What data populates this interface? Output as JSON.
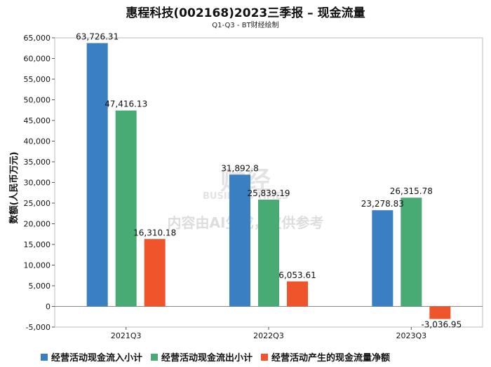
{
  "chart_data": {
    "type": "bar",
    "title": "惠程科技(002168)2023三季报 – 现金流量",
    "subtitle": "Q1-Q3 - BT财经绘制",
    "ylabel": "数额(人民币万元)",
    "categories": [
      "2021Q3",
      "2022Q3",
      "2023Q3"
    ],
    "ylim": [
      -5000,
      65000
    ],
    "yticks": [
      -5000,
      0,
      5000,
      10000,
      15000,
      20000,
      25000,
      30000,
      35000,
      40000,
      45000,
      50000,
      55000,
      60000,
      65000
    ],
    "ytick_labels": [
      "-5,000",
      "0",
      "5,000",
      "10,000",
      "15,000",
      "20,000",
      "25,000",
      "30,000",
      "35,000",
      "40,000",
      "45,000",
      "50,000",
      "55,000",
      "60,000",
      "65,000"
    ],
    "grid": false,
    "legend_position": "bottom",
    "series": [
      {
        "name": "经营活动现金流入小计",
        "color": "#3a7fc1",
        "values": [
          63726.31,
          31892.8,
          23278.83
        ],
        "labels": [
          "63,726.31",
          "31,892.8",
          "23,278.83"
        ]
      },
      {
        "name": "经营活动现金流出小计",
        "color": "#48ab73",
        "values": [
          47416.13,
          25839.19,
          26315.78
        ],
        "labels": [
          "47,416.13",
          "25,839.19",
          "26,315.78"
        ]
      },
      {
        "name": "经营活动产生的现金流量净额",
        "color": "#f0542a",
        "values": [
          16310.18,
          6053.61,
          -3036.95
        ],
        "labels": [
          "16,310.18",
          "6,053.61",
          "-3,036.95"
        ]
      }
    ]
  },
  "watermark": {
    "brand": "财经",
    "brand_en": "BUSINESS TIMES",
    "notice": "内容由AI生成，仅供参考"
  }
}
